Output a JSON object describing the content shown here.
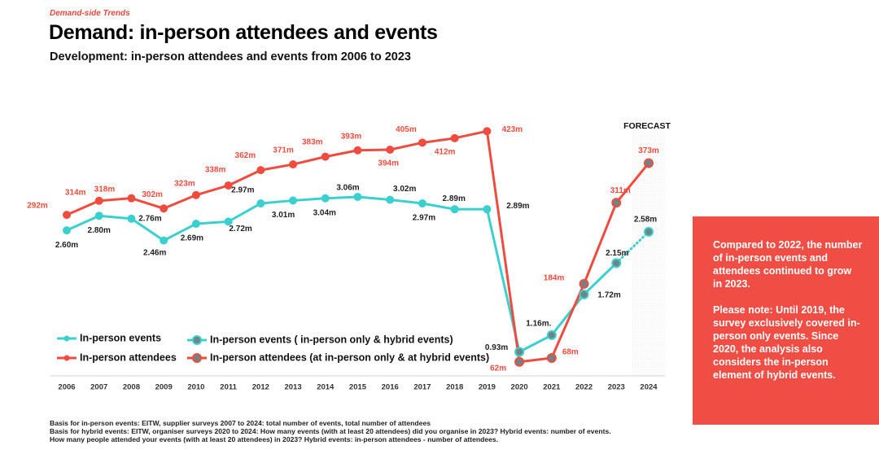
{
  "section": "Demand-side Trends",
  "callout": [
    "Compared to 2022, the number of in-person events and attendees continued to grow in 2023.",
    "Please note: Until 2019, the survey exclusively covered in-person only events. Since 2020, the analysis also considers the in-person element of hybrid events."
  ],
  "notes": [
    "Basis for in-person events: EITW, supplier surveys 2007 to 2024: total number of events, total number of attendees",
    "Basis for hybrid events: EITW, organiser surveys 2020 to 2024: How many events (with at least 20 attendees) did you organise in 2023? Hybrid events: number of events. How many people attended your events (with at least 20 attendees) in 2023? Hybrid events: in-person attendees - number of attendees."
  ],
  "chart_data": {
    "type": "line",
    "title": "Demand: in-person attendees and events",
    "subtitle": "Development: in-person attendees and events from 2006 to 2023",
    "annotations": [
      "FORECAST"
    ],
    "categories": [
      "2006",
      "2007",
      "2008",
      "2009",
      "2010",
      "2011",
      "2012",
      "2013",
      "2014",
      "2015",
      "2016",
      "2017",
      "2018",
      "2019",
      "2020",
      "2021",
      "2022",
      "2023",
      "2024"
    ],
    "ylim": [
      40,
      450
    ],
    "y2lim": [
      0.6,
      4.2
    ],
    "legend": "bottom-left",
    "series": [
      {
        "name": "In-person events",
        "color": "#3ccfcf",
        "marker_color": "#3ccfcf",
        "axis": "y2",
        "values": [
          2.6,
          2.8,
          2.76,
          2.46,
          2.69,
          2.72,
          2.97,
          3.01,
          3.04,
          3.06,
          3.02,
          2.97,
          2.89,
          2.89,
          null,
          null,
          null,
          null,
          null
        ],
        "value_labels": [
          "2.60m",
          "2.80m",
          "2.76m",
          "2.46m",
          "2.69m",
          "2.72m",
          "2.97m",
          "3.01m",
          "3.04m",
          "3.06m",
          "3.02m",
          "2.97m",
          "2.89m",
          "2.89m",
          null,
          null,
          null,
          null,
          null
        ]
      },
      {
        "name": "In-person events ( in-person only & hybrid events)",
        "color": "#3ccfcf",
        "marker_color": "#6f8585",
        "axis": "y2",
        "values": [
          null,
          null,
          null,
          null,
          null,
          null,
          null,
          null,
          null,
          null,
          null,
          null,
          null,
          null,
          0.93,
          1.16,
          1.72,
          2.15,
          2.58
        ],
        "value_labels": [
          null,
          null,
          null,
          null,
          null,
          null,
          null,
          null,
          null,
          null,
          null,
          null,
          null,
          null,
          "0.93m",
          "1.16m.",
          "1.72m",
          "2.15m",
          "2.58m"
        ]
      },
      {
        "name": "In-person attendees",
        "color": "#ef4c3f",
        "marker_color": "#ef4c3f",
        "axis": "y",
        "values": [
          292,
          314,
          318,
          302,
          323,
          338,
          362,
          371,
          383,
          393,
          394,
          405,
          412,
          423,
          null,
          null,
          null,
          null,
          null
        ],
        "value_labels": [
          "292m",
          "314m",
          "318m",
          "302m",
          "323m",
          "338m",
          "362m",
          "371m",
          "383m",
          "393m",
          "394m",
          "405m",
          "412m",
          "423m",
          null,
          null,
          null,
          null,
          null
        ]
      },
      {
        "name": "In-person attendees (at in-person only & at hybrid events)",
        "color": "#ef4c3f",
        "marker_color": "#6f8585",
        "axis": "y",
        "values": [
          null,
          null,
          null,
          null,
          null,
          null,
          null,
          null,
          null,
          null,
          null,
          null,
          null,
          null,
          62,
          68,
          184,
          311,
          373
        ],
        "value_labels": [
          null,
          null,
          null,
          null,
          null,
          null,
          null,
          null,
          null,
          null,
          null,
          null,
          null,
          null,
          "62m",
          "68m",
          "184m",
          "311m",
          "373m"
        ]
      }
    ]
  }
}
